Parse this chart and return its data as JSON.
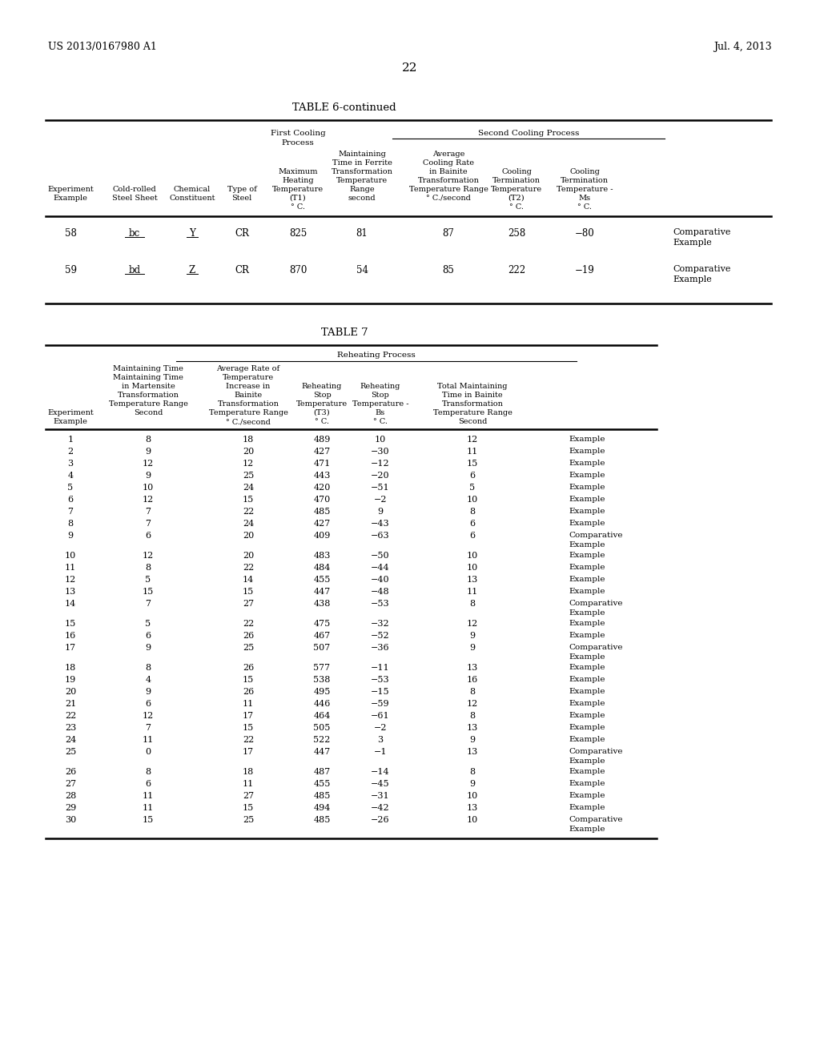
{
  "page_header_left": "US 2013/0167980 A1",
  "page_header_right": "Jul. 4, 2013",
  "page_number": "22",
  "table6_title": "TABLE 6-continued",
  "table6_data": [
    [
      "58",
      "bc",
      "Y",
      "CR",
      "825",
      "81",
      "87",
      "258",
      "−80",
      "Comparative\nExample"
    ],
    [
      "59",
      "bd",
      "Z",
      "CR",
      "870",
      "54",
      "85",
      "222",
      "−19",
      "Comparative\nExample"
    ]
  ],
  "table7_title": "TABLE 7",
  "table7_data": [
    [
      "1",
      "8",
      "18",
      "489",
      "10",
      "12",
      "Example"
    ],
    [
      "2",
      "9",
      "20",
      "427",
      "−30",
      "11",
      "Example"
    ],
    [
      "3",
      "12",
      "12",
      "471",
      "−12",
      "15",
      "Example"
    ],
    [
      "4",
      "9",
      "25",
      "443",
      "−20",
      "6",
      "Example"
    ],
    [
      "5",
      "10",
      "24",
      "420",
      "−51",
      "5",
      "Example"
    ],
    [
      "6",
      "12",
      "15",
      "470",
      "−2",
      "10",
      "Example"
    ],
    [
      "7",
      "7",
      "22",
      "485",
      "9",
      "8",
      "Example"
    ],
    [
      "8",
      "7",
      "24",
      "427",
      "−43",
      "6",
      "Example"
    ],
    [
      "9",
      "6",
      "20",
      "409",
      "−63",
      "6",
      "Comparative\nExample"
    ],
    [
      "10",
      "12",
      "20",
      "483",
      "−50",
      "10",
      "Example"
    ],
    [
      "11",
      "8",
      "22",
      "484",
      "−44",
      "10",
      "Example"
    ],
    [
      "12",
      "5",
      "14",
      "455",
      "−40",
      "13",
      "Example"
    ],
    [
      "13",
      "15",
      "15",
      "447",
      "−48",
      "11",
      "Example"
    ],
    [
      "14",
      "7",
      "27",
      "438",
      "−53",
      "8",
      "Comparative\nExample"
    ],
    [
      "15",
      "5",
      "22",
      "475",
      "−32",
      "12",
      "Example"
    ],
    [
      "16",
      "6",
      "26",
      "467",
      "−52",
      "9",
      "Example"
    ],
    [
      "17",
      "9",
      "25",
      "507",
      "−36",
      "9",
      "Comparative\nExample"
    ],
    [
      "18",
      "8",
      "26",
      "577",
      "−11",
      "13",
      "Example"
    ],
    [
      "19",
      "4",
      "15",
      "538",
      "−53",
      "16",
      "Example"
    ],
    [
      "20",
      "9",
      "26",
      "495",
      "−15",
      "8",
      "Example"
    ],
    [
      "21",
      "6",
      "11",
      "446",
      "−59",
      "12",
      "Example"
    ],
    [
      "22",
      "12",
      "17",
      "464",
      "−61",
      "8",
      "Example"
    ],
    [
      "23",
      "7",
      "15",
      "505",
      "−2",
      "13",
      "Example"
    ],
    [
      "24",
      "11",
      "22",
      "522",
      "3",
      "9",
      "Example"
    ],
    [
      "25",
      "0",
      "17",
      "447",
      "−1",
      "13",
      "Comparative\nExample"
    ],
    [
      "26",
      "8",
      "18",
      "487",
      "−14",
      "8",
      "Example"
    ],
    [
      "27",
      "6",
      "11",
      "455",
      "−45",
      "9",
      "Example"
    ],
    [
      "28",
      "11",
      "27",
      "485",
      "−31",
      "10",
      "Example"
    ],
    [
      "29",
      "11",
      "15",
      "494",
      "−42",
      "13",
      "Example"
    ],
    [
      "30",
      "15",
      "25",
      "485",
      "−26",
      "10",
      "Comparative\nExample"
    ]
  ]
}
